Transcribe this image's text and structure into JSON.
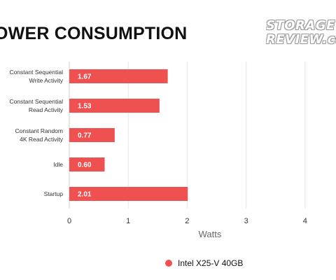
{
  "header": {
    "title": "OWER CONSUMPTION",
    "logo_line1": "STORAGE",
    "logo_line2": "REVIEW.com"
  },
  "colors": {
    "bar": "#ef5050",
    "grid": "#e6e6e6",
    "baseline": "#cccccc",
    "logo_outline": "#9a9a9a"
  },
  "chart_data": {
    "type": "bar",
    "orientation": "horizontal",
    "title": "OWER CONSUMPTION",
    "xlabel": "Watts",
    "ylabel": "",
    "xlim": [
      0,
      4.75
    ],
    "xticks": [
      "0",
      "1",
      "2",
      "3",
      "4"
    ],
    "grid": true,
    "legend_position": "bottom",
    "categories": [
      [
        "Constant Sequential",
        "Write Activity"
      ],
      [
        "Constant Sequential",
        "Read Activity"
      ],
      [
        "Constant Random",
        "4K Read Activity"
      ],
      [
        "Idle"
      ],
      [
        "Startup"
      ]
    ],
    "series": [
      {
        "name": "Intel X25-V 40GB",
        "values": [
          1.67,
          1.53,
          0.77,
          0.6,
          2.01
        ],
        "labels": [
          "1.67",
          "1.53",
          "0.77",
          "0.60",
          "2.01"
        ]
      }
    ]
  }
}
